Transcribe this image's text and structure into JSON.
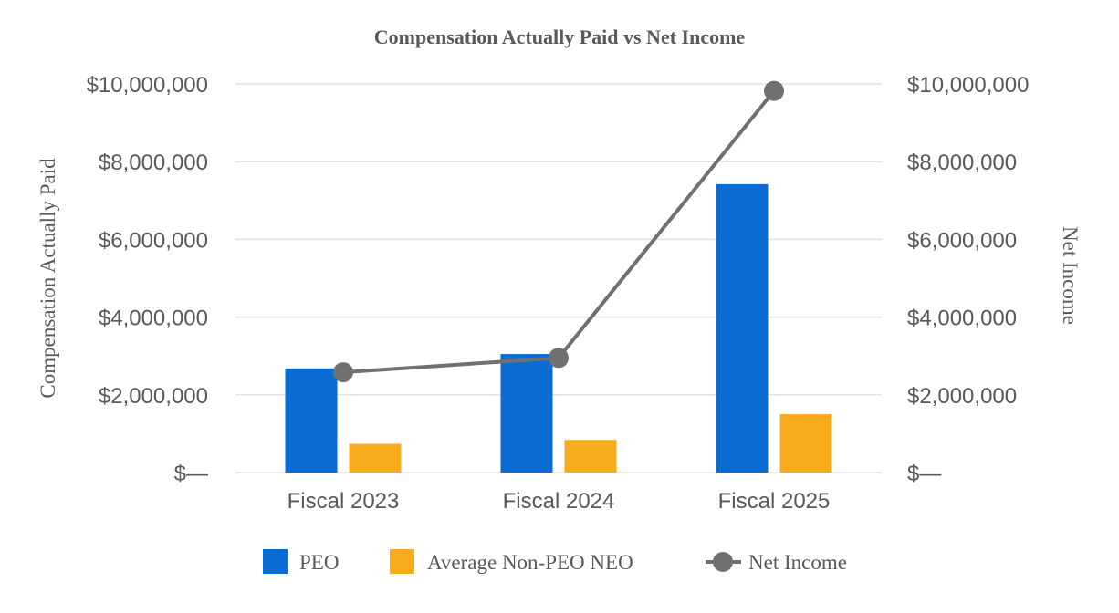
{
  "chart_data": {
    "type": "bar",
    "title": "Compensation Actually Paid vs Net Income",
    "categories": [
      "Fiscal 2023",
      "Fiscal 2024",
      "Fiscal 2025"
    ],
    "series": [
      {
        "name": "PEO",
        "type": "bar",
        "axis": "left",
        "color": "#0A6BD2",
        "values": [
          2680000,
          3050000,
          7420000
        ]
      },
      {
        "name": "Average Non-PEO NEO",
        "type": "bar",
        "axis": "left",
        "color": "#F7AC1D",
        "values": [
          740000,
          840000,
          1500000
        ]
      },
      {
        "name": "Net Income",
        "type": "line",
        "axis": "right",
        "color": "#707070",
        "values": [
          2580000,
          2950000,
          9820000
        ]
      }
    ],
    "ylabel": "Compensation Actually Paid",
    "y2label": "Net Income",
    "ylim": [
      0,
      10000000
    ],
    "y2lim": [
      0,
      10000000
    ],
    "yticks": [
      "$—",
      "$2,000,000",
      "$4,000,000",
      "$6,000,000",
      "$8,000,000",
      "$10,000,000"
    ],
    "y2ticks": [
      "$—",
      "$2,000,000",
      "$4,000,000",
      "$6,000,000",
      "$8,000,000",
      "$10,000,000"
    ],
    "grid": true,
    "legend_position": "bottom"
  }
}
